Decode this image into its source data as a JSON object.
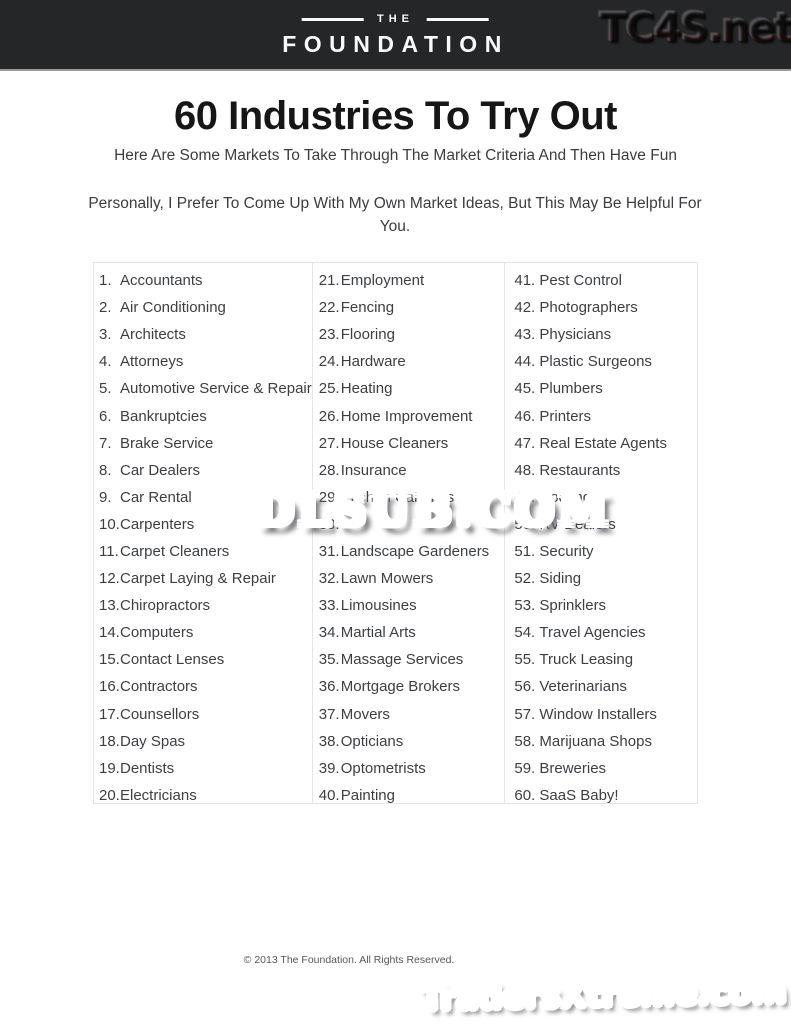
{
  "header": {
    "logo_top": "THE",
    "logo_bottom": "FOUNDATION"
  },
  "watermarks": {
    "top_right": "TC4S.net",
    "center": "DLSUB.COM",
    "bottom_right": "TradersXtreme.com"
  },
  "title": "60 Industries To Try Out",
  "subtitle": "Here Are Some Markets To Take Through The Market Criteria And Then Have Fun",
  "intro": "Personally, I Prefer To Come Up With My Own Market Ideas, But This May Be Helpful For You.",
  "list": {
    "columns": [
      {
        "items": [
          {
            "num": "1.",
            "label": "Accountants"
          },
          {
            "num": "2.",
            "label": "Air Conditioning"
          },
          {
            "num": "3.",
            "label": "Architects"
          },
          {
            "num": "4.",
            "label": "Attorneys"
          },
          {
            "num": "5.",
            "label": "Automotive Service & Repair"
          },
          {
            "num": "6.",
            "label": "Bankruptcies"
          },
          {
            "num": "7.",
            "label": "Brake Service"
          },
          {
            "num": "8.",
            "label": "Car Dealers"
          },
          {
            "num": "9.",
            "label": "Car Rental"
          },
          {
            "num": "10.",
            "label": "Carpenters"
          },
          {
            "num": "11.",
            "label": "Carpet Cleaners"
          },
          {
            "num": "12.",
            "label": "Carpet Laying & Repair"
          },
          {
            "num": "13.",
            "label": "Chiropractors"
          },
          {
            "num": "14.",
            "label": "Computers"
          },
          {
            "num": "15.",
            "label": "Contact Lenses"
          },
          {
            "num": "16.",
            "label": "Contractors"
          },
          {
            "num": "17.",
            "label": "Counsellors"
          },
          {
            "num": "18.",
            "label": "Day Spas"
          },
          {
            "num": "19.",
            "label": "Dentists"
          },
          {
            "num": "20.",
            "label": "Electricians"
          }
        ]
      },
      {
        "items": [
          {
            "num": "21.",
            "label": "Employment"
          },
          {
            "num": "22.",
            "label": "Fencing"
          },
          {
            "num": "23.",
            "label": "Flooring"
          },
          {
            "num": "24.",
            "label": "Hardware"
          },
          {
            "num": "25.",
            "label": "Heating"
          },
          {
            "num": "26.",
            "label": "Home Improvement"
          },
          {
            "num": "27.",
            "label": "House Cleaners"
          },
          {
            "num": "28.",
            "label": "Insurance"
          },
          {
            "num": "29.",
            "label": "Kitchen Cabinets"
          },
          {
            "num": "30.",
            "label": ""
          },
          {
            "num": "31.",
            "label": "Landscape Gardeners"
          },
          {
            "num": "32.",
            "label": "Lawn Mowers"
          },
          {
            "num": "33.",
            "label": "Limousines"
          },
          {
            "num": "34.",
            "label": "Martial Arts"
          },
          {
            "num": "35.",
            "label": "Massage Services"
          },
          {
            "num": "36.",
            "label": "Mortgage Brokers"
          },
          {
            "num": "37.",
            "label": "Movers"
          },
          {
            "num": "38.",
            "label": "Opticians"
          },
          {
            "num": "39.",
            "label": "Optometrists"
          },
          {
            "num": "40.",
            "label": "Painting"
          }
        ]
      },
      {
        "items": [
          {
            "num": "41.",
            "label": "Pest Control"
          },
          {
            "num": "42.",
            "label": "Photographers"
          },
          {
            "num": "43.",
            "label": "Physicians"
          },
          {
            "num": "44.",
            "label": "Plastic Surgeons"
          },
          {
            "num": "45.",
            "label": "Plumbers"
          },
          {
            "num": "46.",
            "label": "Printers"
          },
          {
            "num": "47.",
            "label": "Real Estate Agents"
          },
          {
            "num": "48.",
            "label": "Restaurants"
          },
          {
            "num": "49.",
            "label": "Roofing"
          },
          {
            "num": "50.",
            "label": "RV Dealers"
          },
          {
            "num": "51.",
            "label": "Security"
          },
          {
            "num": "52.",
            "label": "Siding"
          },
          {
            "num": "53.",
            "label": "Sprinklers"
          },
          {
            "num": "54.",
            "label": "Travel Agencies"
          },
          {
            "num": "55.",
            "label": "Truck Leasing"
          },
          {
            "num": "56.",
            "label": "Veterinarians"
          },
          {
            "num": "57.",
            "label": "Window Installers"
          },
          {
            "num": "58.",
            "label": "Marijuana Shops"
          },
          {
            "num": "59.",
            "label": "Breweries"
          },
          {
            "num": "60.",
            "label": "SaaS Baby!"
          }
        ]
      }
    ]
  },
  "footer": "© 2013 The Foundation. All Rights Reserved.",
  "colors": {
    "header_bg": "#242628",
    "text": "#3c4044",
    "table_border": "#e3e5e7",
    "watermark_red": "#c41f1c",
    "tc4s_dark_red": "#6e3a36"
  }
}
